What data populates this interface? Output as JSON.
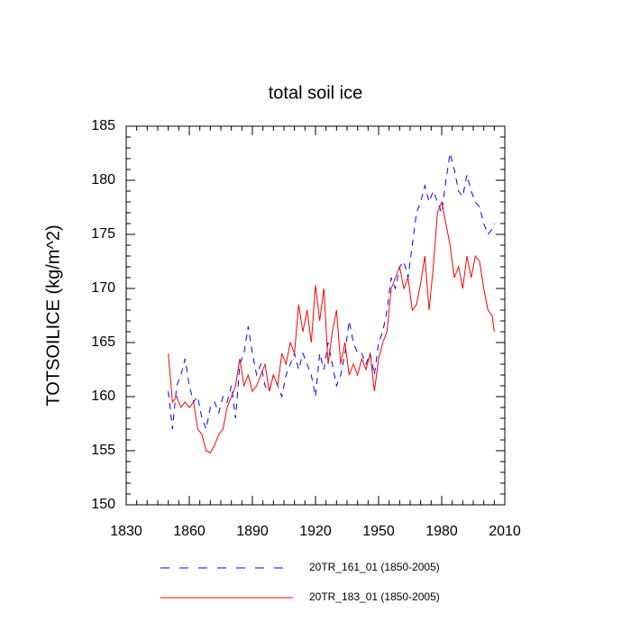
{
  "chart_data": {
    "type": "line",
    "title": "total soil ice",
    "y_label": "TOTSOILICE  (kg/m^2)",
    "x": [
      1850,
      1852,
      1854,
      1856,
      1858,
      1860,
      1862,
      1864,
      1866,
      1868,
      1870,
      1872,
      1874,
      1876,
      1878,
      1880,
      1882,
      1884,
      1886,
      1888,
      1890,
      1892,
      1894,
      1896,
      1898,
      1900,
      1902,
      1904,
      1906,
      1908,
      1910,
      1912,
      1914,
      1916,
      1918,
      1920,
      1922,
      1924,
      1926,
      1928,
      1930,
      1932,
      1934,
      1936,
      1938,
      1940,
      1942,
      1944,
      1946,
      1948,
      1950,
      1952,
      1954,
      1956,
      1958,
      1960,
      1962,
      1964,
      1966,
      1968,
      1970,
      1972,
      1974,
      1976,
      1978,
      1980,
      1982,
      1984,
      1986,
      1988,
      1990,
      1992,
      1994,
      1996,
      1998,
      2000,
      2002,
      2004,
      2005
    ],
    "series": [
      {
        "name": "20TR_161_01 (1850-2005)",
        "color": "#0000ff",
        "dashed": true,
        "values": [
          160.5,
          157,
          161,
          162,
          163.5,
          161,
          159.5,
          160,
          158,
          157,
          159,
          159.5,
          158.5,
          160,
          159.5,
          161,
          158,
          163,
          164,
          166.5,
          164,
          162,
          163,
          161,
          160.5,
          162,
          161,
          160,
          162,
          163,
          164,
          162.5,
          164,
          163,
          162,
          160,
          164,
          162.5,
          165,
          163,
          161,
          162,
          164,
          167,
          165,
          164,
          164,
          163,
          164,
          162,
          165,
          166,
          168,
          171,
          170,
          172,
          172.5,
          171,
          174,
          177,
          178,
          179.5,
          178,
          179,
          178,
          177,
          180,
          182.5,
          181,
          179,
          178.5,
          180.5,
          179,
          178,
          177.5,
          176,
          175,
          175.5,
          176
        ]
      },
      {
        "name": "20TR_183_01 (1850-2005)",
        "color": "#ff0000",
        "dashed": false,
        "values": [
          164,
          159.5,
          160,
          159,
          159.5,
          159,
          159.5,
          157,
          156.5,
          155,
          154.8,
          155.5,
          156.5,
          157,
          159,
          160,
          161,
          163.5,
          161,
          162,
          160.5,
          161,
          162,
          163,
          160.5,
          162,
          161,
          164,
          163,
          165,
          164,
          168.5,
          166,
          168,
          165,
          170.3,
          167,
          170,
          163,
          166,
          168,
          163,
          165,
          162,
          163,
          162,
          163.5,
          162.5,
          164,
          160.5,
          163.5,
          165,
          166,
          170,
          171,
          172,
          170,
          171,
          168,
          168.5,
          170.5,
          173,
          168,
          172,
          177,
          178,
          176,
          174,
          171,
          172,
          170,
          173,
          171,
          173,
          172.5,
          170,
          168,
          167.5,
          166
        ]
      }
    ],
    "xlim": [
      1830,
      2010
    ],
    "xticks": [
      1830,
      1860,
      1890,
      1920,
      1950,
      1980,
      2010
    ],
    "ylim": [
      150,
      185
    ],
    "yticks": [
      150,
      155,
      160,
      165,
      170,
      175,
      180,
      185
    ],
    "legend": "bottom"
  }
}
